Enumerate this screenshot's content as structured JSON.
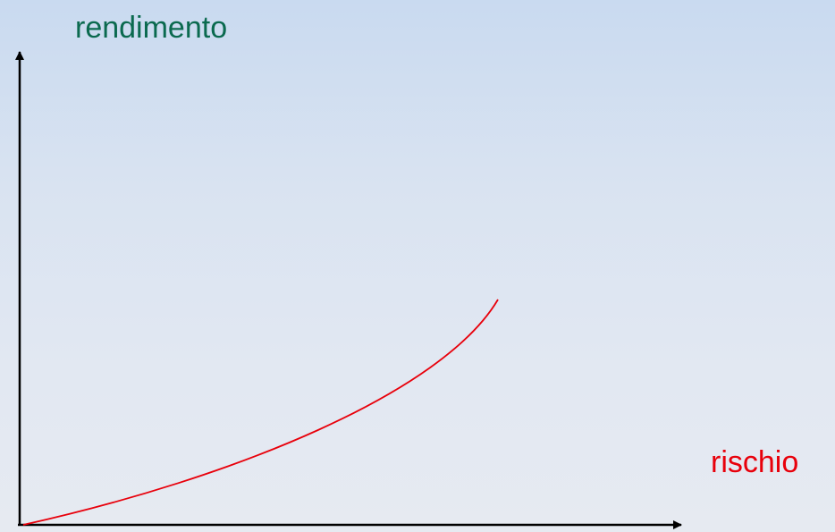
{
  "diagram": {
    "y_axis_label": "rendimento",
    "x_axis_label": "rischio",
    "colors": {
      "axes": "#000000",
      "curve": "#e8000b",
      "y_label": "#0b6a4f",
      "x_label": "#e8000b"
    }
  }
}
